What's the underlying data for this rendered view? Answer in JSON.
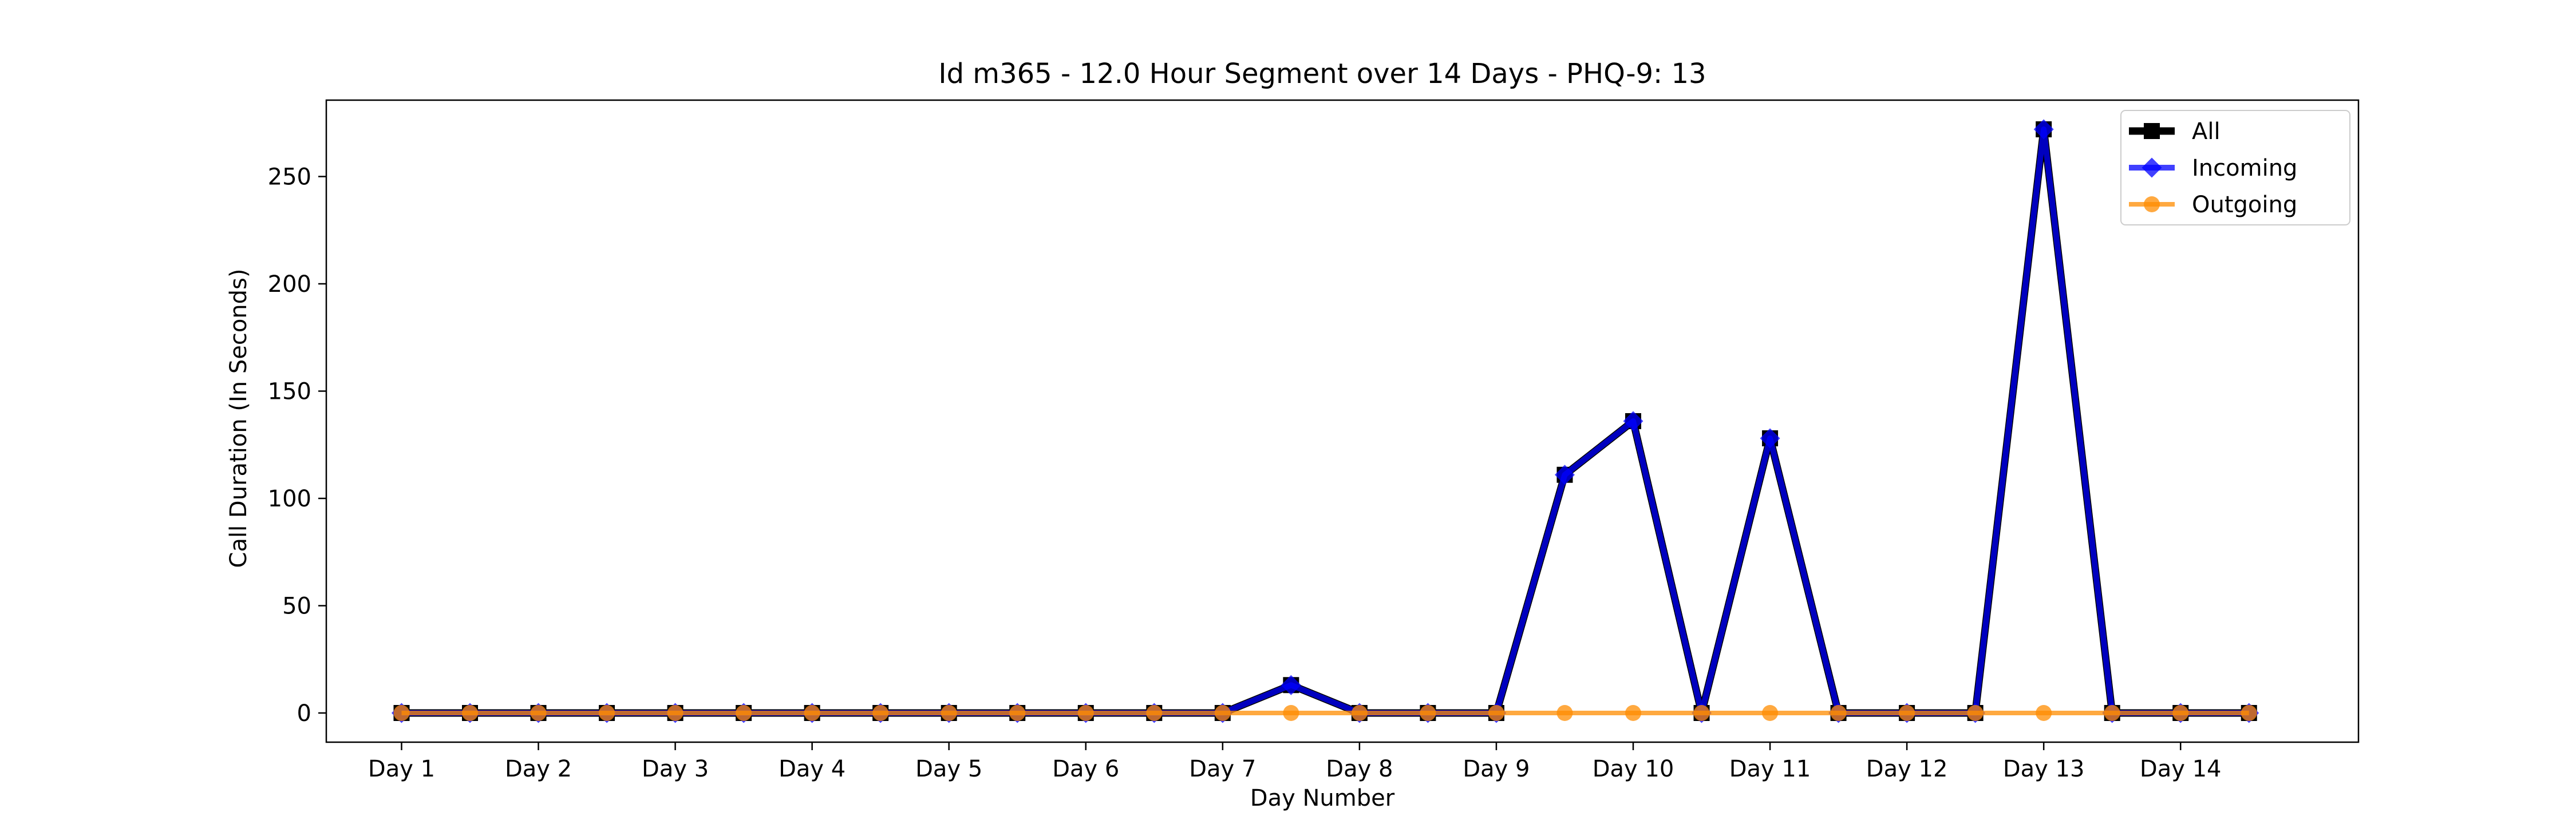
{
  "chart_data": {
    "type": "line",
    "title": "Id m365 - 12.0 Hour Segment over 14 Days - PHQ-9: 13",
    "xlabel": "Day Number",
    "ylabel": "Call Duration (In Seconds)",
    "x": [
      1,
      1.5,
      2,
      2.5,
      3,
      3.5,
      4,
      4.5,
      5,
      5.5,
      6,
      6.5,
      7,
      7.5,
      8,
      8.5,
      9,
      9.5,
      10,
      10.5,
      11,
      11.5,
      12,
      12.5,
      13,
      13.5,
      14,
      14.5
    ],
    "xticks": [
      {
        "value": 1,
        "label": "Day 1"
      },
      {
        "value": 2,
        "label": "Day 2"
      },
      {
        "value": 3,
        "label": "Day 3"
      },
      {
        "value": 4,
        "label": "Day 4"
      },
      {
        "value": 5,
        "label": "Day 5"
      },
      {
        "value": 6,
        "label": "Day 6"
      },
      {
        "value": 7,
        "label": "Day 7"
      },
      {
        "value": 8,
        "label": "Day 8"
      },
      {
        "value": 9,
        "label": "Day 9"
      },
      {
        "value": 10,
        "label": "Day 10"
      },
      {
        "value": 11,
        "label": "Day 11"
      },
      {
        "value": 12,
        "label": "Day 12"
      },
      {
        "value": 13,
        "label": "Day 13"
      },
      {
        "value": 14,
        "label": "Day 14"
      }
    ],
    "yticks": [
      0,
      50,
      100,
      150,
      200,
      250
    ],
    "xlim": [
      0.45,
      15.3
    ],
    "ylim": [
      -13.6,
      285.6
    ],
    "grid": false,
    "legend_position": "top-right",
    "series": [
      {
        "name": "All",
        "color": "#000000",
        "marker": "square",
        "values": [
          0,
          0,
          0,
          0,
          0,
          0,
          0,
          0,
          0,
          0,
          0,
          0,
          0,
          13,
          0,
          0,
          0,
          111,
          136,
          0,
          128,
          0,
          0,
          0,
          272,
          0,
          0,
          0
        ]
      },
      {
        "name": "Incoming",
        "color": "#0000ff",
        "marker": "diamond",
        "values": [
          0,
          0,
          0,
          0,
          0,
          0,
          0,
          0,
          0,
          0,
          0,
          0,
          0,
          13,
          0,
          0,
          0,
          111,
          136,
          0,
          128,
          0,
          0,
          0,
          272,
          0,
          0,
          0
        ]
      },
      {
        "name": "Outgoing",
        "color": "#ff8c00",
        "marker": "circle",
        "values": [
          0,
          0,
          0,
          0,
          0,
          0,
          0,
          0,
          0,
          0,
          0,
          0,
          0,
          0,
          0,
          0,
          0,
          0,
          0,
          0,
          0,
          0,
          0,
          0,
          0,
          0,
          0,
          0
        ]
      }
    ]
  }
}
